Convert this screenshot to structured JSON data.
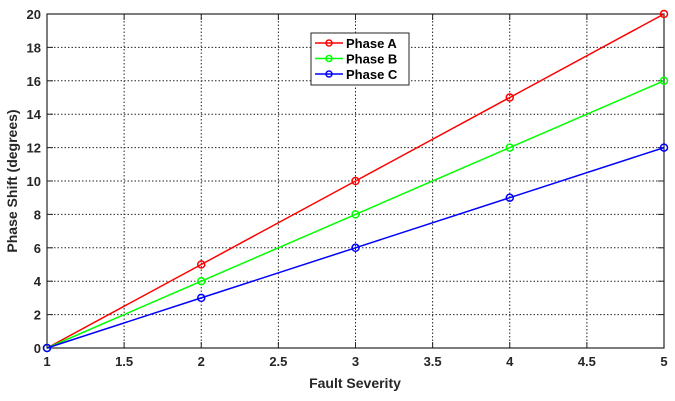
{
  "chart_data": {
    "type": "line",
    "title": "",
    "xlabel": "Fault Severity",
    "ylabel": "Phase Shift (degrees)",
    "xlim": [
      1,
      5
    ],
    "ylim": [
      0,
      20
    ],
    "x_ticks": [
      1,
      1.5,
      2,
      2.5,
      3,
      3.5,
      4,
      4.5,
      5
    ],
    "x_tick_labels": [
      "1",
      "1.5",
      "2",
      "2.5",
      "3",
      "3.5",
      "4",
      "4.5",
      "5"
    ],
    "y_ticks": [
      0,
      2,
      4,
      6,
      8,
      10,
      12,
      14,
      16,
      18,
      20
    ],
    "y_tick_labels": [
      "0",
      "2",
      "4",
      "6",
      "8",
      "10",
      "12",
      "14",
      "16",
      "18",
      "20"
    ],
    "grid": true,
    "legend_position": "upper center",
    "x": [
      1,
      2,
      3,
      4,
      5
    ],
    "series": [
      {
        "name": "Phase A",
        "color": "#ff0000",
        "marker": "circle",
        "values": [
          0,
          5,
          10,
          15,
          20
        ]
      },
      {
        "name": "Phase B",
        "color": "#00ff00",
        "marker": "circle",
        "values": [
          0,
          4,
          8,
          12,
          16
        ]
      },
      {
        "name": "Phase C",
        "color": "#0000ff",
        "marker": "circle",
        "values": [
          0,
          3,
          6,
          9,
          12
        ]
      }
    ]
  }
}
